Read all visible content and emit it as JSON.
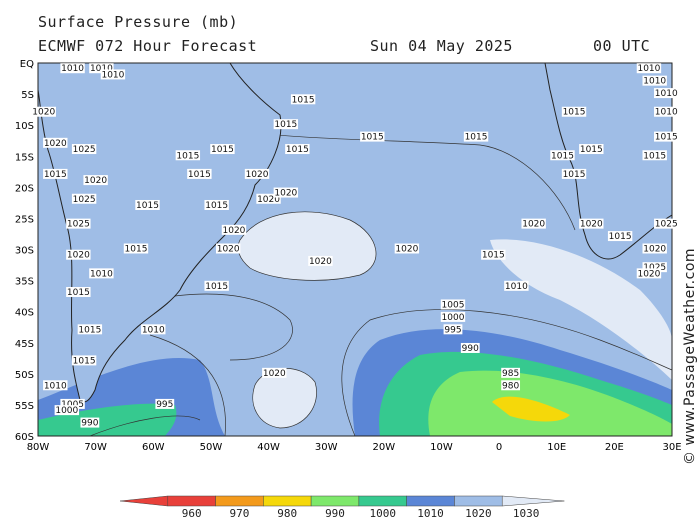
{
  "header": {
    "title": "Surface Pressure (mb)",
    "model": "ECMWF 072 Hour Forecast",
    "date": "Sun 04 May 2025",
    "time": "00 UTC"
  },
  "credit": "© www.PassageWeather.com",
  "axes": {
    "lat_labels": [
      "EQ",
      "5S",
      "10S",
      "15S",
      "20S",
      "25S",
      "30S",
      "35S",
      "40S",
      "45S",
      "50S",
      "55S",
      "60S"
    ],
    "lon_labels": [
      "80W",
      "70W",
      "60W",
      "50W",
      "40W",
      "30W",
      "20W",
      "10W",
      "0",
      "10E",
      "20E",
      "30E"
    ]
  },
  "legend": {
    "values": [
      "960",
      "970",
      "980",
      "990",
      "1000",
      "1010",
      "1020",
      "1030"
    ],
    "colors": [
      "#e8403a",
      "#f39a1c",
      "#f5d80a",
      "#7ee86b",
      "#36c98f",
      "#5b86d6",
      "#9fbde6",
      "#e2eaf6"
    ]
  },
  "isobar_labels": [
    {
      "text": "1010",
      "lon": -74,
      "lat": -1
    },
    {
      "text": "1010",
      "lon": -69,
      "lat": -1
    },
    {
      "text": "1010",
      "lon": -67,
      "lat": -2
    },
    {
      "text": "1020",
      "lon": -79,
      "lat": -8
    },
    {
      "text": "1020",
      "lon": -77,
      "lat": -13
    },
    {
      "text": "1025",
      "lon": -72,
      "lat": -14
    },
    {
      "text": "1015",
      "lon": -77,
      "lat": -18
    },
    {
      "text": "1020",
      "lon": -70,
      "lat": -19
    },
    {
      "text": "1025",
      "lon": -72,
      "lat": -22
    },
    {
      "text": "1015",
      "lon": -61,
      "lat": -23
    },
    {
      "text": "1025",
      "lon": -73,
      "lat": -26
    },
    {
      "text": "1015",
      "lon": -63,
      "lat": -30
    },
    {
      "text": "1020",
      "lon": -73,
      "lat": -31
    },
    {
      "text": "1010",
      "lon": -69,
      "lat": -34
    },
    {
      "text": "1015",
      "lon": -73,
      "lat": -37
    },
    {
      "text": "1015",
      "lon": -71,
      "lat": -43
    },
    {
      "text": "1015",
      "lon": -72,
      "lat": -48
    },
    {
      "text": "1010",
      "lon": -77,
      "lat": -52
    },
    {
      "text": "1005",
      "lon": -74,
      "lat": -55
    },
    {
      "text": "1000",
      "lon": -75,
      "lat": -56
    },
    {
      "text": "990",
      "lon": -71,
      "lat": -58
    },
    {
      "text": "995",
      "lon": -58,
      "lat": -55
    },
    {
      "text": "1010",
      "lon": -60,
      "lat": -43
    },
    {
      "text": "1015",
      "lon": -54,
      "lat": -15
    },
    {
      "text": "1015",
      "lon": -52,
      "lat": -18
    },
    {
      "text": "1015",
      "lon": -49,
      "lat": -23
    },
    {
      "text": "1020",
      "lon": -46,
      "lat": -27
    },
    {
      "text": "1020",
      "lon": -42,
      "lat": -18
    },
    {
      "text": "1020",
      "lon": -40,
      "lat": -22
    },
    {
      "text": "1020",
      "lon": -37,
      "lat": -21
    },
    {
      "text": "1020",
      "lon": -47,
      "lat": -30
    },
    {
      "text": "1015",
      "lon": -48,
      "lat": -14
    },
    {
      "text": "1015",
      "lon": -35,
      "lat": -14
    },
    {
      "text": "1015",
      "lon": -34,
      "lat": -6
    },
    {
      "text": "1015",
      "lon": -37,
      "lat": -10
    },
    {
      "text": "1015",
      "lon": -22,
      "lat": -12
    },
    {
      "text": "1015",
      "lon": -4,
      "lat": -12
    },
    {
      "text": "1015",
      "lon": -49,
      "lat": -36
    },
    {
      "text": "1020",
      "lon": -31,
      "lat": -32
    },
    {
      "text": "1020",
      "lon": -16,
      "lat": -30
    },
    {
      "text": "1020",
      "lon": -39,
      "lat": -50
    },
    {
      "text": "1015",
      "lon": -1,
      "lat": -31
    },
    {
      "text": "1010",
      "lon": 3,
      "lat": -36
    },
    {
      "text": "1005",
      "lon": -8,
      "lat": -39
    },
    {
      "text": "1000",
      "lon": -8,
      "lat": -41
    },
    {
      "text": "995",
      "lon": -8,
      "lat": -43
    },
    {
      "text": "990",
      "lon": -5,
      "lat": -46
    },
    {
      "text": "985",
      "lon": 2,
      "lat": -50
    },
    {
      "text": "980",
      "lon": 2,
      "lat": -52
    },
    {
      "text": "1020",
      "lon": 6,
      "lat": -26
    },
    {
      "text": "1015",
      "lon": 13,
      "lat": -8
    },
    {
      "text": "1015",
      "lon": 11,
      "lat": -15
    },
    {
      "text": "1015",
      "lon": 13,
      "lat": -18
    },
    {
      "text": "1015",
      "lon": 16,
      "lat": -14
    },
    {
      "text": "1020",
      "lon": 16,
      "lat": -26
    },
    {
      "text": "1015",
      "lon": 21,
      "lat": -28
    },
    {
      "text": "1010",
      "lon": 26,
      "lat": -1
    },
    {
      "text": "1010",
      "lon": 27,
      "lat": -3
    },
    {
      "text": "1010",
      "lon": 29,
      "lat": -5
    },
    {
      "text": "1010",
      "lon": 29,
      "lat": -8
    },
    {
      "text": "1015",
      "lon": 29,
      "lat": -12
    },
    {
      "text": "1015",
      "lon": 27,
      "lat": -15
    },
    {
      "text": "1020",
      "lon": 27,
      "lat": -30
    },
    {
      "text": "1025",
      "lon": 29,
      "lat": -26
    },
    {
      "text": "1025",
      "lon": 27,
      "lat": -33
    },
    {
      "text": "1020",
      "lon": 26,
      "lat": -34
    }
  ]
}
